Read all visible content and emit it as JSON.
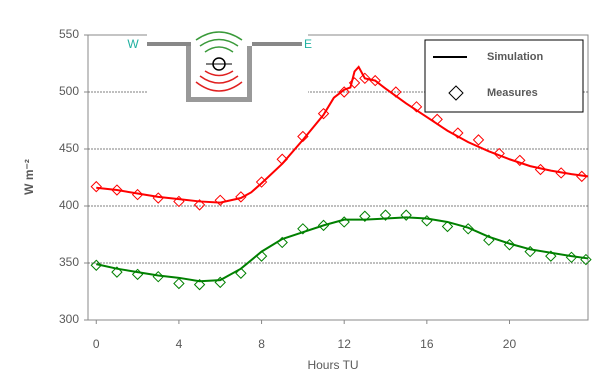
{
  "chart_data": {
    "type": "line",
    "xlabel": "Hours TU",
    "ylabel": "W m⁻²",
    "xlim": [
      -0.4,
      23.8
    ],
    "xticks": [
      0,
      4,
      8,
      12,
      16,
      20
    ],
    "ylim": [
      300,
      550
    ],
    "yticks": [
      300,
      350,
      400,
      450,
      500,
      550
    ],
    "grid": true,
    "annotations": [
      "W",
      "E"
    ],
    "legend": [
      {
        "name": "Simulation",
        "marker": "line"
      },
      {
        "name": "Measures",
        "marker": "diamond"
      }
    ],
    "series": [
      {
        "style": "line",
        "color": "#ff0000",
        "x": [
          0,
          1,
          2,
          3,
          4,
          5,
          6,
          7,
          7.5,
          8,
          9,
          10,
          11,
          11.5,
          12,
          12.3,
          12.5,
          12.7,
          13,
          13.5,
          14,
          15,
          16,
          17,
          18,
          19,
          20,
          21,
          22,
          23,
          23.8
        ],
        "values": [
          416,
          414,
          411,
          408,
          406,
          404,
          403,
          407,
          412,
          420,
          437,
          458,
          480,
          495,
          502,
          504,
          518,
          522,
          512,
          510,
          503,
          490,
          478,
          466,
          456,
          448,
          441,
          435,
          431,
          428,
          426
        ]
      },
      {
        "style": "diamond",
        "color": "#ff0000",
        "x": [
          0,
          1,
          2,
          3,
          4,
          5,
          6,
          7,
          8,
          9,
          10,
          11,
          12,
          12.5,
          13,
          13.5,
          14.5,
          15.5,
          16.5,
          17.5,
          18.5,
          19.5,
          20.5,
          21.5,
          22.5,
          23.5
        ],
        "values": [
          417,
          414,
          410,
          407,
          404,
          401,
          405,
          408,
          421,
          441,
          461,
          481,
          500,
          508,
          512,
          510,
          500,
          487,
          476,
          464,
          458,
          446,
          440,
          432,
          429,
          426
        ]
      },
      {
        "style": "line",
        "color": "#008000",
        "x": [
          0,
          1,
          2,
          3,
          4,
          5,
          6,
          7,
          8,
          9,
          10,
          11,
          12,
          13,
          14,
          15,
          16,
          17,
          18,
          19,
          20,
          21,
          22,
          23,
          23.8
        ],
        "values": [
          349,
          345,
          342,
          339,
          337,
          334,
          335,
          345,
          360,
          371,
          377,
          383,
          388,
          388,
          389,
          390,
          389,
          386,
          381,
          373,
          367,
          362,
          359,
          356,
          354
        ]
      },
      {
        "style": "diamond",
        "color": "#008000",
        "x": [
          0,
          1,
          2,
          3,
          4,
          5,
          6,
          7,
          8,
          9,
          10,
          11,
          12,
          13,
          14,
          15,
          16,
          17,
          18,
          19,
          20,
          21,
          22,
          23,
          23.7
        ],
        "values": [
          348,
          342,
          340,
          338,
          332,
          331,
          333,
          341,
          356,
          368,
          380,
          383,
          386,
          391,
          392,
          392,
          387,
          382,
          380,
          370,
          366,
          360,
          356,
          355,
          353
        ]
      }
    ]
  }
}
